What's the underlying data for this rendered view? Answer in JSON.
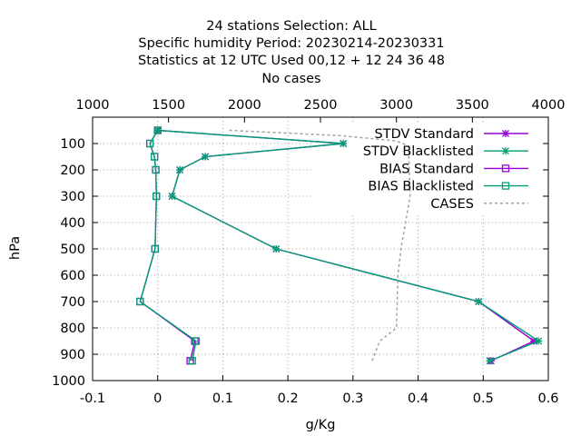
{
  "chart_data": {
    "type": "line",
    "title_lines": [
      "24 stations Selection: ALL",
      "Specific humidity  Period: 20230214-20230331",
      "Statistics at 12 UTC  Used  00,12  + 12 24 36 48",
      "No cases"
    ],
    "xlabel": "g/Kg",
    "ylabel": "hPa",
    "xlim": [
      -0.1,
      0.6
    ],
    "ylim": [
      1000,
      0
    ],
    "x2lim": [
      1000,
      4000
    ],
    "x_ticks": [
      "-0.1",
      "0",
      "0.1",
      "0.2",
      "0.3",
      "0.4",
      "0.5",
      "0.6"
    ],
    "x2_ticks": [
      "1000",
      "1500",
      "2000",
      "2500",
      "3000",
      "3500",
      "4000"
    ],
    "y_ticks": [
      "100",
      "200",
      "300",
      "400",
      "500",
      "600",
      "700",
      "800",
      "900",
      "1000"
    ],
    "grid": true,
    "legend_position": "top-right",
    "levels": [
      50,
      100,
      150,
      200,
      300,
      500,
      700,
      850,
      925
    ],
    "series": [
      {
        "name": "STDV Standard",
        "color": "#9400d3",
        "marker": "x",
        "x": [
          0.0,
          0.285,
          0.073,
          0.034,
          0.022,
          0.182,
          0.493,
          0.578,
          0.512
        ],
        "y": [
          50,
          100,
          150,
          200,
          300,
          500,
          700,
          850,
          925
        ]
      },
      {
        "name": "STDV Blacklisted",
        "color": "#009e73",
        "marker": "x",
        "x": [
          0.0,
          0.285,
          0.073,
          0.034,
          0.022,
          0.182,
          0.493,
          0.585,
          0.51
        ],
        "y": [
          50,
          100,
          150,
          200,
          300,
          500,
          700,
          850,
          925
        ]
      },
      {
        "name": "BIAS Standard",
        "color": "#9400d3",
        "marker": "square",
        "x": [
          0.0,
          -0.012,
          -0.005,
          -0.003,
          -0.002,
          -0.004,
          -0.027,
          0.057,
          0.05
        ],
        "y": [
          50,
          100,
          150,
          200,
          300,
          500,
          700,
          850,
          925
        ]
      },
      {
        "name": "BIAS Blacklisted",
        "color": "#009e73",
        "marker": "square",
        "x": [
          0.0,
          -0.012,
          -0.005,
          -0.003,
          -0.002,
          -0.004,
          -0.027,
          0.059,
          0.053
        ],
        "y": [
          50,
          100,
          150,
          200,
          300,
          500,
          700,
          850,
          925
        ]
      },
      {
        "name": "CASES",
        "color": "#a0a0a0",
        "marker": "none",
        "dashed": true,
        "axis": "x2",
        "x": [
          1900,
          2630,
          3000,
          3080,
          3090,
          3030,
          3010,
          3000,
          2890,
          2840
        ],
        "y": [
          50,
          70,
          90,
          110,
          300,
          500,
          600,
          800,
          850,
          925
        ]
      }
    ]
  }
}
